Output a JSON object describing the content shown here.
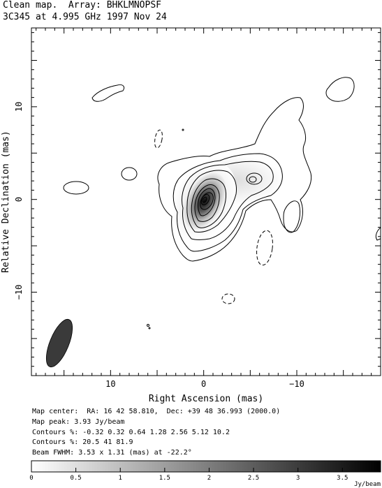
{
  "header": {
    "title_line1": "Clean map.  Array: BHKLMNOPSF",
    "title_line2": "3C345 at 4.995 GHz 1997 Nov 24"
  },
  "info": {
    "map_center": "Map center:  RA: 16 42 58.810,  Dec: +39 48 36.993 (2000.0)",
    "map_peak": "Map peak: 3.93 Jy/beam",
    "contours1": "Contours %: -0.32 0.32 0.64 1.28 2.56 5.12 10.2",
    "contours2": "Contours %: 20.5 41 81.9",
    "beam": "Beam FWHM: 3.53 x 1.31 (mas) at -22.2°"
  },
  "chart_data": {
    "type": "contour",
    "source": "3C345",
    "frequency": "4.995 GHz",
    "date": "1997 Nov 24",
    "xlabel": "Right Ascension  (mas)",
    "ylabel": "Relative Declination  (mas)",
    "xlim": [
      18.5,
      -19
    ],
    "ylim": [
      -19,
      18.5
    ],
    "x_ticks": [
      10,
      0,
      -10
    ],
    "x_tick_labels": [
      "10",
      "0",
      "−10"
    ],
    "y_ticks": [
      10,
      0,
      -10
    ],
    "y_tick_labels": [
      "10",
      "0",
      "−10"
    ],
    "map_peak_jy_per_beam": 3.93,
    "contour_levels_percent": [
      -0.32,
      0.32,
      0.64,
      1.28,
      2.56,
      5.12,
      10.2,
      20.5,
      41,
      81.9
    ],
    "beam": {
      "major_mas": 3.53,
      "minor_mas": 1.31,
      "pa_deg": -22.2,
      "center": [
        15.5,
        -15.5
      ]
    },
    "colorbar": {
      "unit": "Jy/beam",
      "ticks": [
        0,
        0.5,
        1,
        1.5,
        2,
        2.5,
        3,
        3.5
      ],
      "tick_labels": [
        "0",
        "0.5",
        "1",
        "1.5",
        "2",
        "2.5",
        "3",
        "3.5"
      ],
      "range": [
        0,
        3.93
      ]
    },
    "colors": {
      "frame": "#000000",
      "map_low": "#ffffff",
      "map_high": "#000000"
    }
  }
}
